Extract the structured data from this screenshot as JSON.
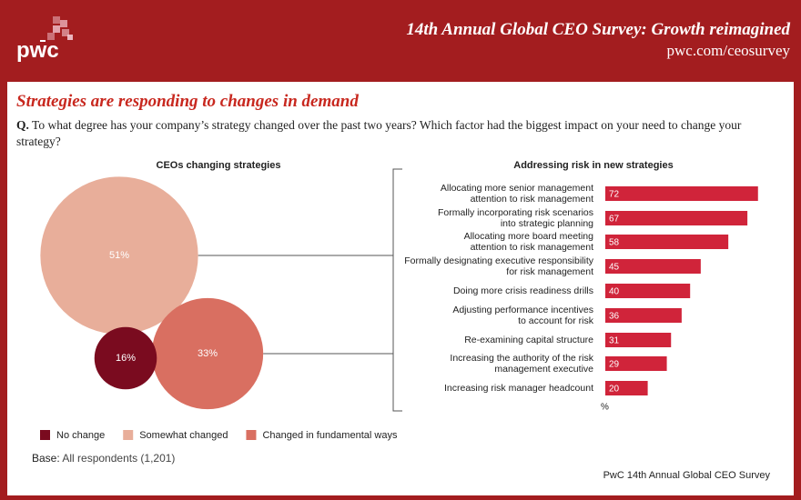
{
  "header": {
    "logo": "pwc",
    "title": "14th Annual Global CEO Survey: Growth reimagined",
    "url": "pwc.com/ceosurvey"
  },
  "heading": "Strategies are responding to changes in demand",
  "question": {
    "label": "Q.",
    "text": "To what degree has your company’s strategy changed over the past two years? Which factor had the biggest impact on your need to change your strategy?"
  },
  "chart_data": [
    {
      "type": "bubble",
      "title": "CEOs changing strategies",
      "categories": [
        "Somewhat changed",
        "Changed in fundamental ways",
        "No change"
      ],
      "values": [
        51,
        33,
        16
      ],
      "value_labels": [
        "51%",
        "33%",
        "16%"
      ],
      "colors": [
        "#e8ae9a",
        "#d96f61",
        "#7a0b1f"
      ],
      "legend_order": [
        2,
        0,
        1
      ]
    },
    {
      "type": "bar",
      "title": "Addressing risk in new strategies",
      "categories": [
        "Allocating more senior management\nattention to risk management",
        "Formally incorporating risk scenarios\ninto strategic planning",
        "Allocating more board meeting\nattention to risk management",
        "Formally designating executive responsibility\nfor risk management",
        "Doing more crisis readiness drills",
        "Adjusting performance incentives\nto account for risk",
        "Re-examining capital structure",
        "Increasing the authority of the risk\nmanagement executive",
        "Increasing risk manager headcount"
      ],
      "values": [
        72,
        67,
        58,
        45,
        40,
        36,
        31,
        29,
        20
      ],
      "color": "#d0243a",
      "xlabel": "%"
    }
  ],
  "base": {
    "label": "Base:",
    "text": "All respondents (1,201)"
  },
  "source": "PwC 14th Annual Global CEO Survey"
}
